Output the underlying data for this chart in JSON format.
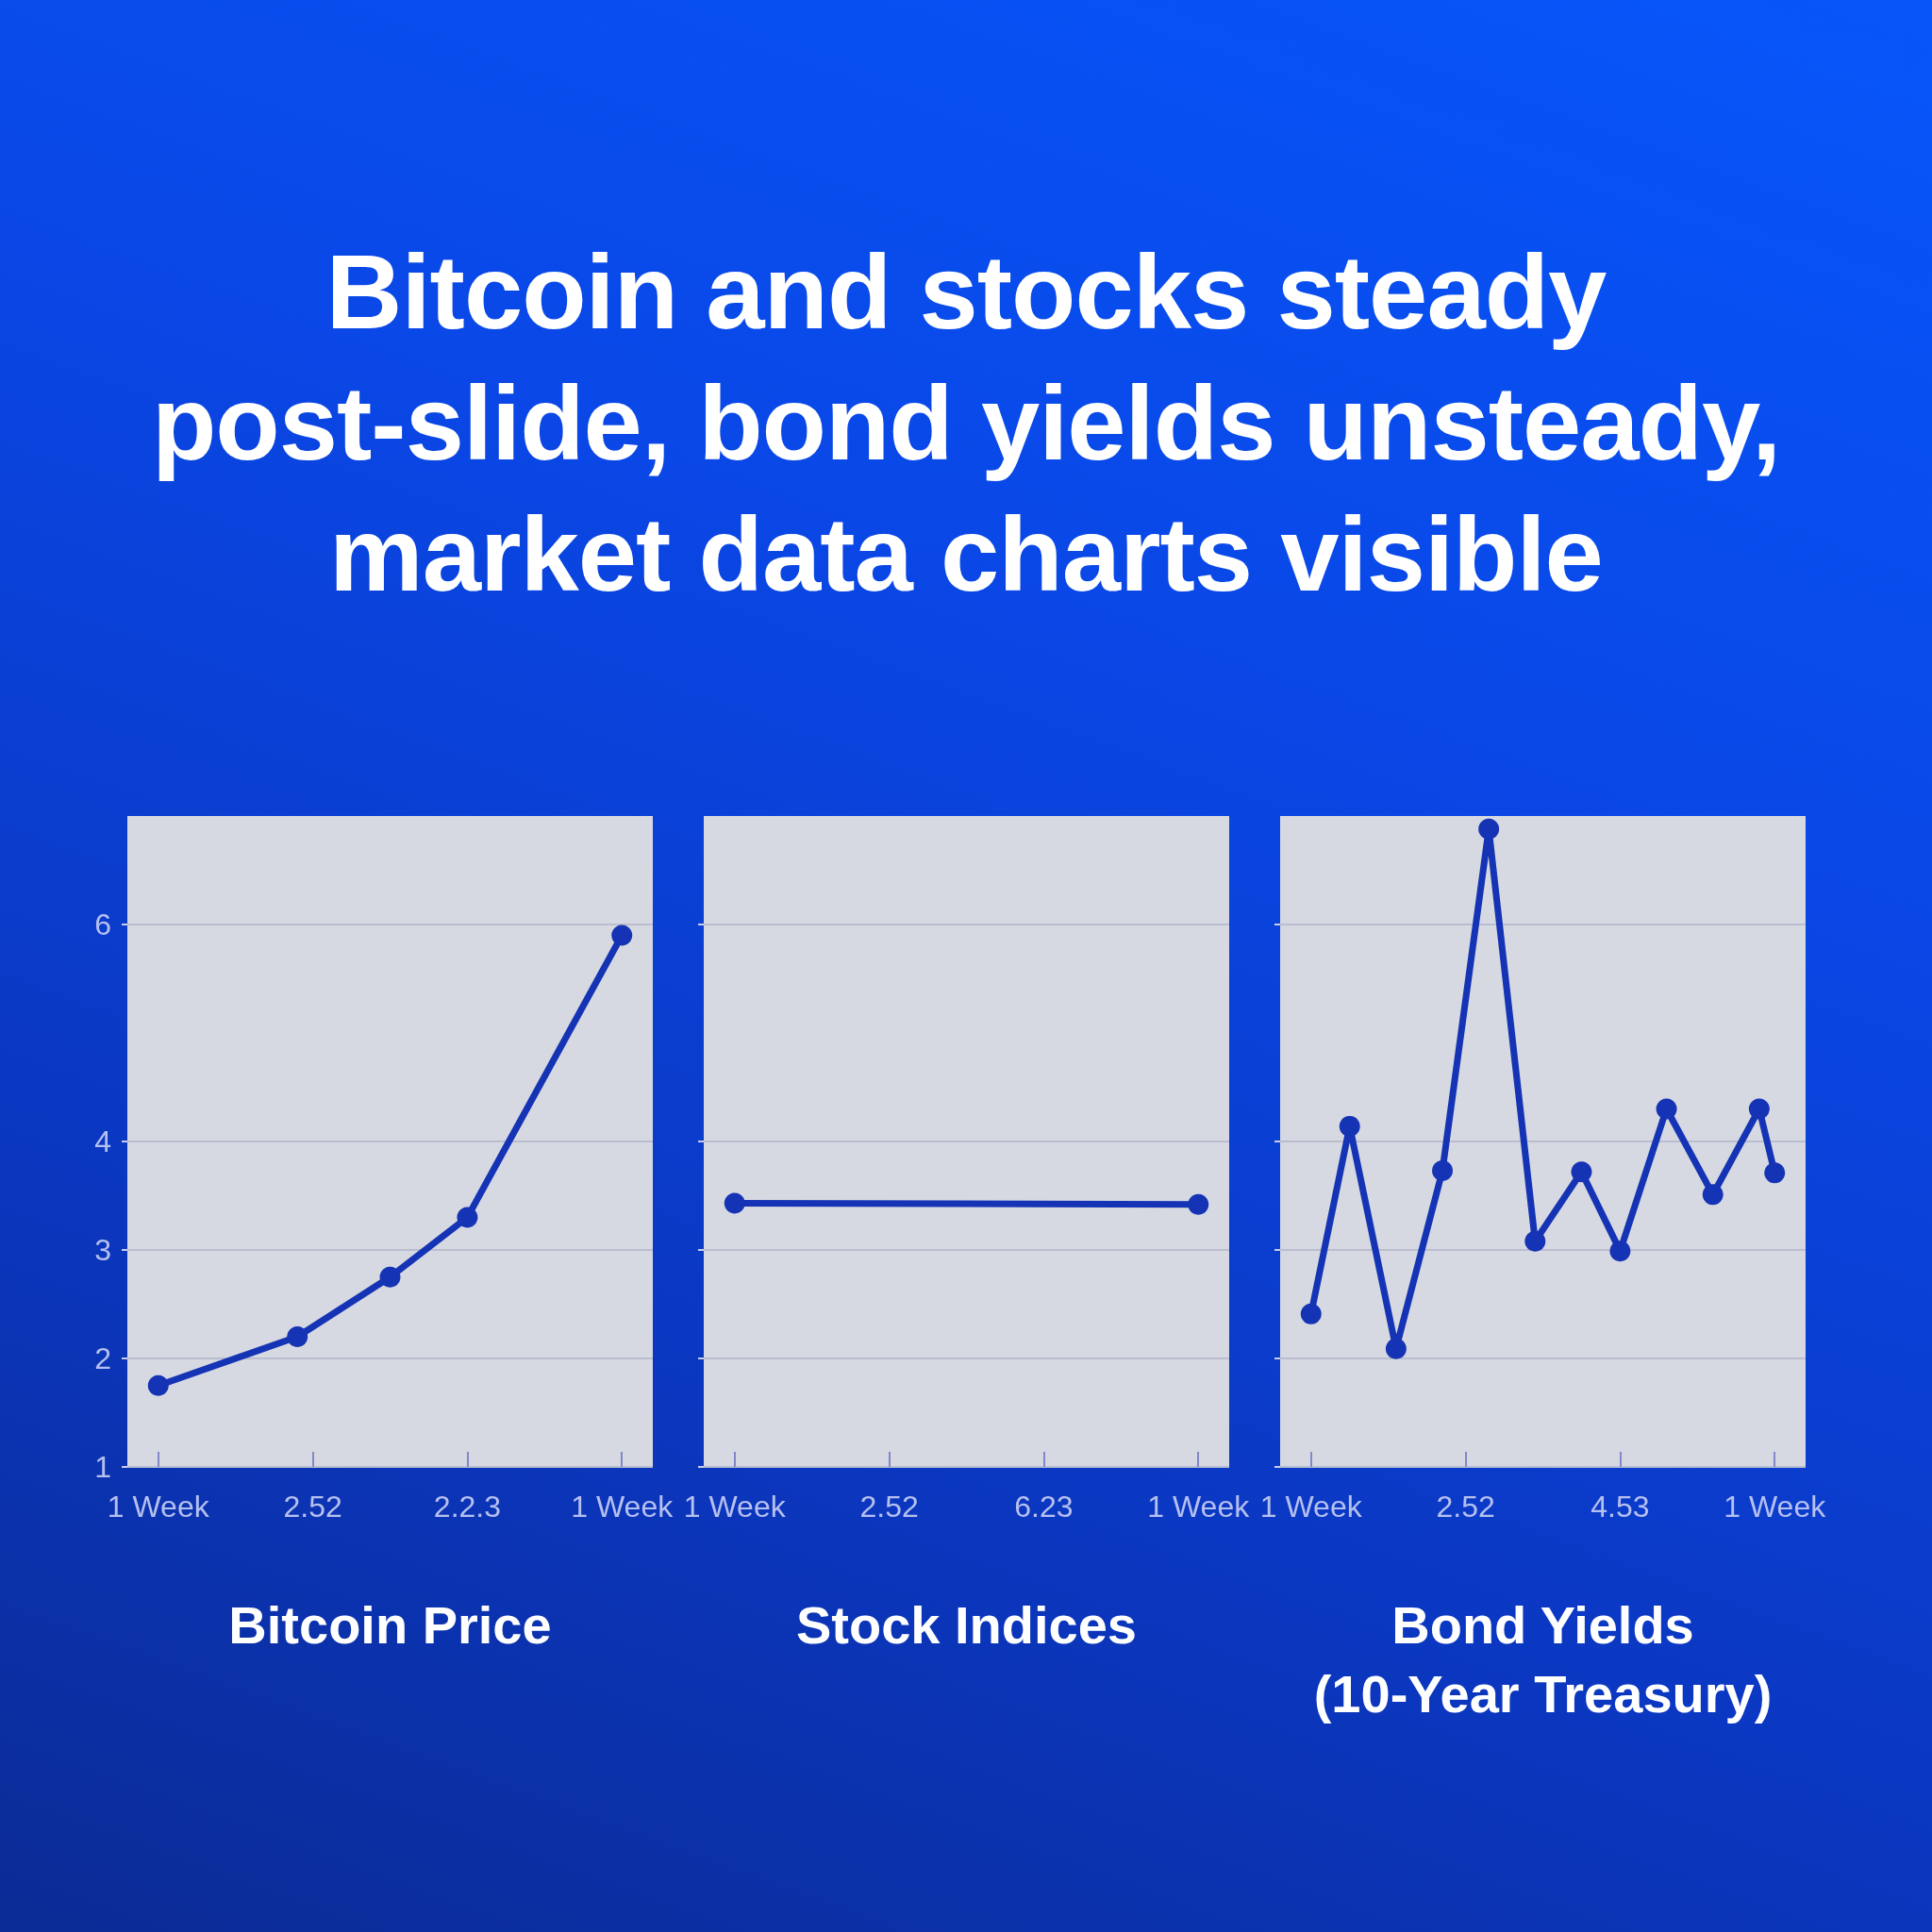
{
  "chart_data": [
    {
      "type": "other",
      "title": "Bitcoin and stocks steady post-slide, bond yields unsteady, market data charts visible"
    },
    {
      "type": "line",
      "title": "Bitcoin Price",
      "categories": [
        null,
        null,
        null,
        null,
        "1 Week",
        null,
        null,
        null,
        null,
        null,
        null,
        null,
        null,
        null,
        null,
        null,
        null,
        null,
        null,
        null,
        null,
        null,
        null,
        null,
        "2.52",
        null,
        null,
        null,
        null,
        null,
        null,
        null,
        null,
        null,
        null,
        null,
        null,
        null,
        null,
        null,
        null,
        null,
        null,
        null,
        "2.2.3",
        null,
        null,
        null,
        null,
        null,
        null,
        null,
        null,
        null,
        null,
        null,
        null,
        null,
        null,
        null,
        null,
        null,
        null,
        null,
        "1 Week",
        null,
        null,
        null,
        null
      ],
      "values": [
        null,
        null,
        null,
        null,
        1.75,
        null,
        null,
        null,
        null,
        null,
        null,
        null,
        null,
        null,
        null,
        null,
        null,
        null,
        null,
        null,
        null,
        null,
        2.2,
        null,
        null,
        null,
        null,
        null,
        null,
        null,
        null,
        null,
        null,
        null,
        2.75,
        null,
        null,
        null,
        null,
        null,
        null,
        null,
        null,
        null,
        3.3,
        null,
        null,
        null,
        null,
        null,
        null,
        null,
        null,
        null,
        null,
        null,
        null,
        null,
        null,
        null,
        null,
        null,
        null,
        null,
        5.9,
        null,
        null,
        null,
        null
      ],
      "color": "#1533b5",
      "ylim": [
        1,
        7
      ],
      "yticks": [
        1,
        2,
        3,
        4,
        6
      ],
      "grid": "y",
      "marker": "circle",
      "line_style": "solid"
    },
    {
      "type": "line",
      "title": "Stock Indices",
      "categories": [
        null,
        null,
        null,
        null,
        "1 Week",
        null,
        null,
        null,
        null,
        null,
        null,
        null,
        null,
        null,
        null,
        null,
        null,
        null,
        null,
        null,
        null,
        null,
        null,
        null,
        "2.52",
        null,
        null,
        null,
        null,
        null,
        null,
        null,
        null,
        null,
        null,
        null,
        null,
        null,
        null,
        null,
        null,
        null,
        null,
        null,
        "6.23",
        null,
        null,
        null,
        null,
        null,
        null,
        null,
        null,
        null,
        null,
        null,
        null,
        null,
        null,
        null,
        null,
        null,
        null,
        null,
        "1 Week",
        null,
        null,
        null,
        null
      ],
      "values": [
        null,
        null,
        null,
        null,
        3.43,
        null,
        null,
        null,
        null,
        null,
        null,
        null,
        null,
        null,
        null,
        null,
        null,
        null,
        null,
        null,
        null,
        null,
        null,
        null,
        null,
        null,
        null,
        null,
        null,
        null,
        null,
        null,
        null,
        null,
        null,
        null,
        null,
        null,
        null,
        null,
        null,
        null,
        null,
        null,
        null,
        null,
        null,
        null,
        null,
        null,
        null,
        null,
        null,
        null,
        null,
        null,
        null,
        null,
        null,
        null,
        null,
        null,
        null,
        null,
        3.42,
        null,
        null,
        null,
        null
      ],
      "color": "#1533b5",
      "ylim": [
        1,
        7
      ],
      "yticks": [
        1,
        2,
        3,
        4,
        6
      ],
      "tick_labels": "x",
      "grid": "y",
      "marker": "circle",
      "line_style": "solid"
    },
    {
      "type": "line",
      "title": "Bond Yields (10-Year Treasury)",
      "categories": [
        null,
        null,
        null,
        null,
        "1 Week",
        null,
        null,
        null,
        null,
        null,
        null,
        null,
        null,
        null,
        null,
        null,
        null,
        null,
        null,
        null,
        null,
        null,
        null,
        null,
        "2.52",
        null,
        null,
        null,
        null,
        null,
        null,
        null,
        null,
        null,
        null,
        null,
        null,
        null,
        null,
        null,
        null,
        null,
        null,
        null,
        "4.53",
        null,
        null,
        null,
        null,
        null,
        null,
        null,
        null,
        null,
        null,
        null,
        null,
        null,
        null,
        null,
        null,
        null,
        null,
        null,
        "1 Week",
        null,
        null,
        null,
        null
      ],
      "values": [
        null,
        null,
        null,
        null,
        2.41,
        null,
        null,
        null,
        null,
        4.14,
        null,
        null,
        null,
        null,
        null,
        2.09,
        null,
        null,
        null,
        null,
        null,
        3.73,
        null,
        null,
        null,
        null,
        null,
        6.88,
        null,
        null,
        null,
        null,
        null,
        3.08,
        null,
        null,
        null,
        null,
        null,
        3.72,
        null,
        null,
        null,
        null,
        2.99,
        null,
        null,
        null,
        null,
        null,
        4.3,
        null,
        null,
        null,
        null,
        null,
        3.51,
        null,
        null,
        null,
        null,
        null,
        4.3,
        null,
        3.71,
        null,
        null,
        null,
        null
      ],
      "color": "#1533b5",
      "ylim": [
        1,
        7
      ],
      "yticks": [
        1,
        2,
        3,
        4,
        6
      ],
      "tick_labels": "x",
      "grid": "y",
      "marker": "circle",
      "line_style": "solid"
    }
  ]
}
